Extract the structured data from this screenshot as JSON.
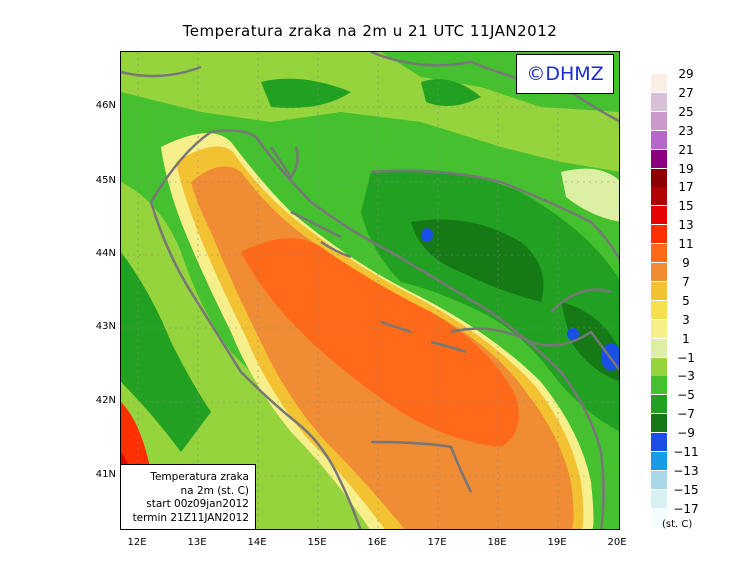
{
  "title": "Temperatura zraka na 2m u 21 UTC 11JAN2012",
  "logo": "©DHMZ",
  "info_box": {
    "line1": "Temperatura zraka",
    "line2": "na 2m (st. C)",
    "line3": "start 00z09jan2012",
    "line4": "termin 21Z11JAN2012"
  },
  "lat_ticks": [
    "46N",
    "45N",
    "44N",
    "43N",
    "42N",
    "41N"
  ],
  "lon_ticks": [
    "12E",
    "13E",
    "14E",
    "15E",
    "16E",
    "17E",
    "18E",
    "19E",
    "20E"
  ],
  "legend": {
    "labels": [
      "29",
      "27",
      "25",
      "23",
      "21",
      "19",
      "17",
      "15",
      "13",
      "11",
      "9",
      "7",
      "5",
      "3",
      "1",
      "−1",
      "−3",
      "−5",
      "−7",
      "−9",
      "−11",
      "−13",
      "−15",
      "−17"
    ],
    "colors": [
      "#fbeee2",
      "#d8c0d8",
      "#cc99cc",
      "#b866cc",
      "#8b0080",
      "#8b0000",
      "#b00000",
      "#e60000",
      "#ff2f00",
      "#ff6a1a",
      "#f08c33",
      "#f2c233",
      "#f7e04d",
      "#f7ef8c",
      "#dcefa3",
      "#95d43d",
      "#45c02e",
      "#22a022",
      "#157a15",
      "#1a4fe6",
      "#1a9be6",
      "#a8d8e6",
      "#d9f0f2",
      "#f5fcfc"
    ],
    "units": "(st. C)"
  },
  "map_colors": {
    "sea_warm": "#ff6a1a",
    "sea_mid": "#f08c33",
    "coast_warm": "#f2c233",
    "coast_light": "#f7ef8c",
    "land_light": "#95d43d",
    "land": "#45c02e",
    "land_dark": "#22a022",
    "land_darkest": "#157a15",
    "cold_spot": "#1a4fe6",
    "warm_corner": "#e60000",
    "borders": "#777777"
  }
}
